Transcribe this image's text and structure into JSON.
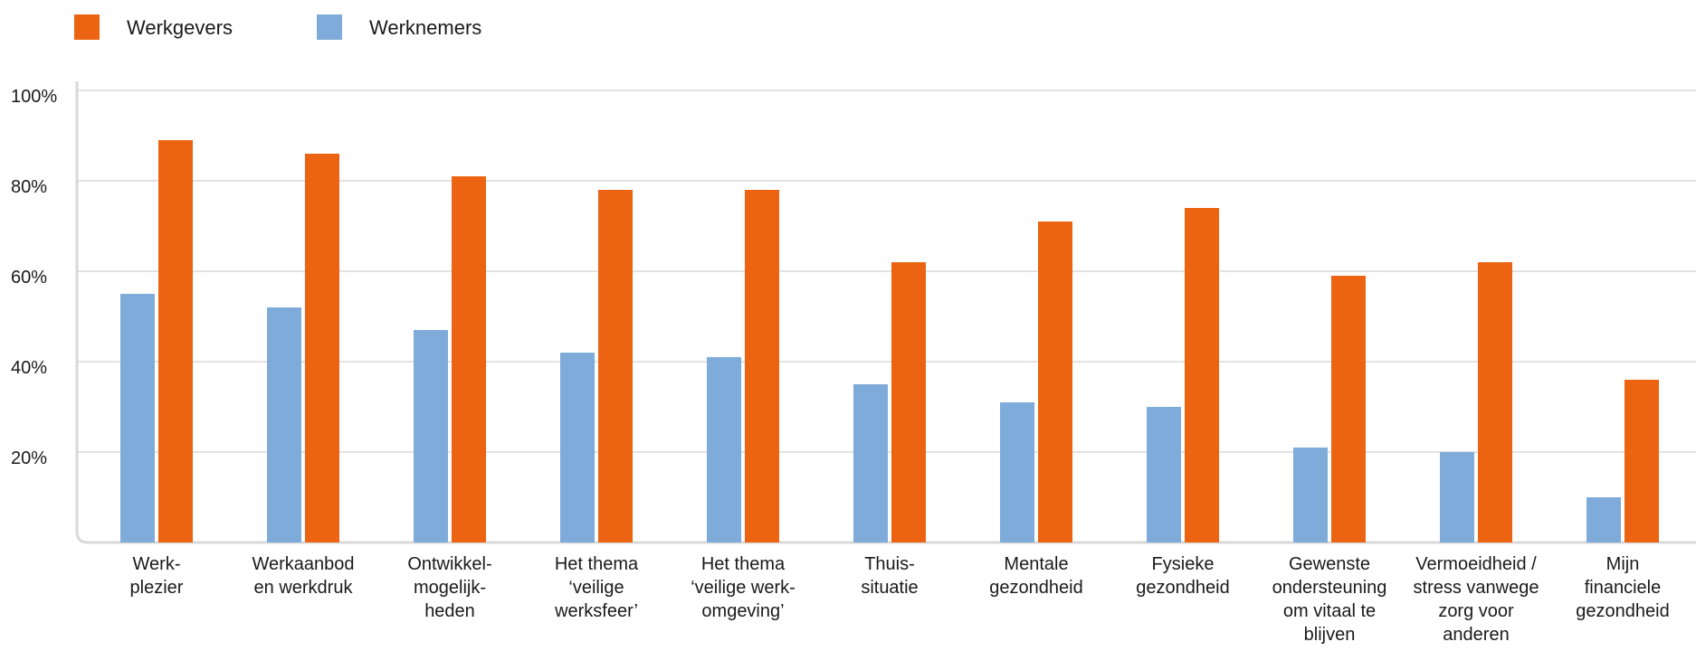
{
  "chart_data": {
    "type": "bar",
    "title": "",
    "xlabel": "",
    "ylabel": "",
    "ylim": [
      0,
      100
    ],
    "grid": true,
    "legend_position": "top-left",
    "y_ticks": [
      "20%",
      "40%",
      "60%",
      "80%",
      "100%"
    ],
    "y_tick_values": [
      20,
      40,
      60,
      80,
      100
    ],
    "categories": [
      [
        "Werk-",
        "plezier"
      ],
      [
        "Werkaanbod",
        "en werkdruk"
      ],
      [
        "Ontwikkel-",
        "mogelijk-",
        "heden"
      ],
      [
        "Het thema",
        "‘veilige",
        "werksfeer’"
      ],
      [
        "Het thema",
        "‘veilige werk-",
        "omgeving’"
      ],
      [
        "Thuis-",
        "situatie"
      ],
      [
        "Mentale",
        "gezondheid"
      ],
      [
        "Fysieke",
        "gezondheid"
      ],
      [
        "Gewenste",
        "ondersteuning",
        "om vitaal te",
        "blijven"
      ],
      [
        "Vermoeidheid /",
        "stress vanwege",
        "zorg voor",
        "anderen"
      ],
      [
        "Mijn",
        "financiele",
        "gezondheid"
      ]
    ],
    "series": [
      {
        "name": "Werknemers",
        "color": "#7eabd9",
        "values": [
          55,
          52,
          47,
          42,
          41,
          35,
          31,
          30,
          21,
          20,
          10
        ]
      },
      {
        "name": "Werkgevers",
        "color": "#ec6411",
        "values": [
          89,
          86,
          81,
          78,
          78,
          62,
          71,
          74,
          59,
          62,
          36
        ]
      }
    ]
  },
  "legend": [
    {
      "label": "Werkgevers",
      "color": "#ec6411"
    },
    {
      "label": "Werknemers",
      "color": "#7eabd9"
    }
  ],
  "colors": {
    "grid": "#d9d9d9",
    "axis": "#d9d9d9"
  }
}
